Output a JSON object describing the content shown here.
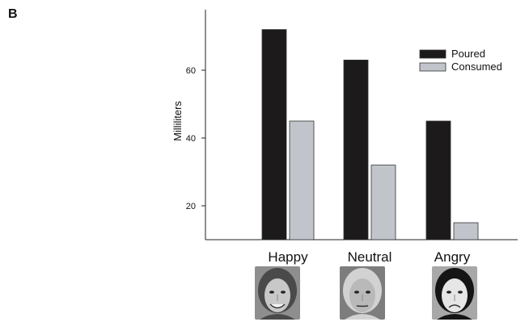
{
  "panel_label": "B",
  "colors": {
    "poured": "#1c1a1b",
    "consumed": "#c2c4cc",
    "axis": "#222222"
  },
  "faces": [
    {
      "name": "happy-face",
      "icon": "smiling-face-photo"
    },
    {
      "name": "neutral-face",
      "icon": "neutral-face-photo"
    },
    {
      "name": "angry-face",
      "icon": "angry-face-photo"
    }
  ],
  "chart_data": {
    "type": "bar",
    "categories": [
      "Happy",
      "Neutral",
      "Angry"
    ],
    "series": [
      {
        "name": "Poured",
        "values": [
          72,
          63,
          45
        ]
      },
      {
        "name": "Consumed",
        "values": [
          45,
          32,
          15
        ]
      }
    ],
    "ylabel": "Milliliters",
    "yticks": [
      20,
      40,
      60
    ],
    "ylim": [
      10,
      78
    ],
    "legend_placement": "top-right",
    "grid": false
  }
}
